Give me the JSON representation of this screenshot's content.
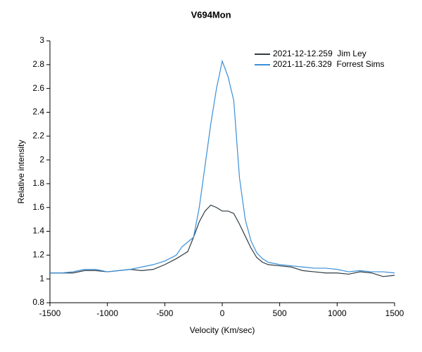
{
  "chart_data": {
    "type": "line",
    "title": "V694Mon",
    "x_label": "Velocity (Km/sec)",
    "y_label": "Relative intensity",
    "x": [
      -1500,
      -1400,
      -1300,
      -1200,
      -1100,
      -1000,
      -900,
      -800,
      -700,
      -600,
      -500,
      -400,
      -350,
      -300,
      -250,
      -200,
      -150,
      -100,
      -50,
      0,
      50,
      100,
      150,
      200,
      250,
      300,
      350,
      400,
      500,
      600,
      700,
      800,
      900,
      1000,
      1100,
      1200,
      1300,
      1400,
      1500
    ],
    "series": [
      {
        "name": "2021-12-12.259  Jim Ley",
        "color": "#2f3b42",
        "values": [
          1.05,
          1.05,
          1.05,
          1.07,
          1.07,
          1.06,
          1.07,
          1.08,
          1.07,
          1.08,
          1.12,
          1.17,
          1.2,
          1.23,
          1.35,
          1.48,
          1.57,
          1.62,
          1.6,
          1.57,
          1.57,
          1.55,
          1.46,
          1.36,
          1.26,
          1.18,
          1.14,
          1.12,
          1.11,
          1.1,
          1.07,
          1.06,
          1.05,
          1.05,
          1.04,
          1.06,
          1.05,
          1.02,
          1.03
        ]
      },
      {
        "name": "2021-11-26.329  Forrest Sims",
        "color": "#3a8fd8",
        "values": [
          1.05,
          1.05,
          1.06,
          1.08,
          1.08,
          1.06,
          1.07,
          1.08,
          1.1,
          1.12,
          1.15,
          1.2,
          1.27,
          1.31,
          1.35,
          1.6,
          1.95,
          2.3,
          2.6,
          2.83,
          2.7,
          2.5,
          1.85,
          1.5,
          1.32,
          1.22,
          1.17,
          1.14,
          1.12,
          1.11,
          1.1,
          1.09,
          1.09,
          1.08,
          1.06,
          1.07,
          1.06,
          1.06,
          1.05
        ]
      }
    ],
    "xlim": [
      -1500,
      1500
    ],
    "ylim": [
      0.8,
      3
    ],
    "xticks": [
      -1500,
      -1000,
      -500,
      0,
      500,
      1000,
      1500
    ],
    "yticks": [
      0.8,
      1,
      1.2,
      1.4,
      1.6,
      1.8,
      2,
      2.2,
      2.4,
      2.6,
      2.8,
      3
    ],
    "grid": false,
    "legend": "upper right"
  }
}
